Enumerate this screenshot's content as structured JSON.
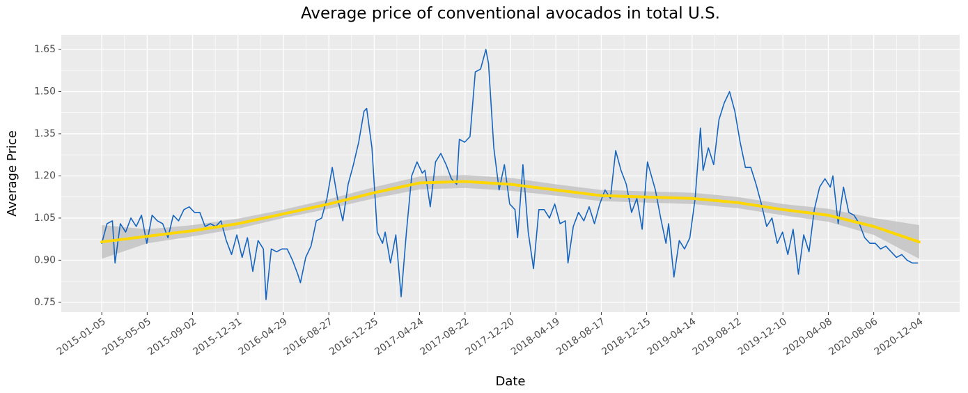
{
  "chart_data": {
    "type": "line",
    "title": "Average price of conventional avocados in total U.S.",
    "x_label": "Date",
    "y_label": "Average Price",
    "xlim": [
      "2014-09-20",
      "2021-03-21"
    ],
    "xticks": [
      "2015-01-05",
      "2015-05-05",
      "2015-09-02",
      "2015-12-31",
      "2016-04-29",
      "2016-08-27",
      "2016-12-25",
      "2017-04-24",
      "2017-08-22",
      "2017-12-20",
      "2018-04-19",
      "2018-08-17",
      "2018-12-15",
      "2019-04-14",
      "2019-08-12",
      "2019-12-10",
      "2020-04-08",
      "2020-08-06",
      "2020-12-04"
    ],
    "ylim": [
      0.715,
      1.702
    ],
    "yticks": [
      {
        "value": 0.75,
        "label": "0.75"
      },
      {
        "value": 0.9,
        "label": "0.90"
      },
      {
        "value": 1.05,
        "label": "1.05"
      },
      {
        "value": 1.2,
        "label": "1.20"
      },
      {
        "value": 1.35,
        "label": "1.35"
      },
      {
        "value": 1.5,
        "label": "1.50"
      },
      {
        "value": 1.65,
        "label": "1.65"
      }
    ],
    "grid": true,
    "series": [
      {
        "color": "#1565c0",
        "x": [
          "2015-01-05",
          "2015-01-19",
          "2015-02-02",
          "2015-02-09",
          "2015-02-23",
          "2015-03-09",
          "2015-03-23",
          "2015-04-06",
          "2015-04-20",
          "2015-05-04",
          "2015-05-18",
          "2015-06-01",
          "2015-06-15",
          "2015-06-29",
          "2015-07-13",
          "2015-07-27",
          "2015-08-10",
          "2015-08-24",
          "2015-09-07",
          "2015-09-21",
          "2015-10-05",
          "2015-10-19",
          "2015-11-02",
          "2015-11-16",
          "2015-11-30",
          "2015-12-14",
          "2015-12-28",
          "2016-01-11",
          "2016-01-25",
          "2016-02-08",
          "2016-02-22",
          "2016-03-07",
          "2016-03-14",
          "2016-03-28",
          "2016-04-11",
          "2016-04-25",
          "2016-05-09",
          "2016-05-23",
          "2016-06-06",
          "2016-06-13",
          "2016-06-27",
          "2016-07-11",
          "2016-07-25",
          "2016-08-08",
          "2016-08-22",
          "2016-09-05",
          "2016-09-19",
          "2016-10-03",
          "2016-10-17",
          "2016-10-31",
          "2016-11-14",
          "2016-11-28",
          "2016-12-05",
          "2016-12-19",
          "2017-01-02",
          "2017-01-16",
          "2017-01-23",
          "2017-02-06",
          "2017-02-20",
          "2017-03-06",
          "2017-03-20",
          "2017-04-03",
          "2017-04-17",
          "2017-05-01",
          "2017-05-08",
          "2017-05-22",
          "2017-06-05",
          "2017-06-19",
          "2017-07-03",
          "2017-07-17",
          "2017-07-31",
          "2017-08-07",
          "2017-08-21",
          "2017-09-04",
          "2017-09-18",
          "2017-10-02",
          "2017-10-16",
          "2017-10-23",
          "2017-11-06",
          "2017-11-20",
          "2017-12-04",
          "2017-12-18",
          "2018-01-01",
          "2018-01-08",
          "2018-01-22",
          "2018-02-05",
          "2018-02-19",
          "2018-03-05",
          "2018-03-19",
          "2018-04-02",
          "2018-04-16",
          "2018-04-30",
          "2018-05-14",
          "2018-05-21",
          "2018-06-04",
          "2018-06-18",
          "2018-07-02",
          "2018-07-16",
          "2018-07-30",
          "2018-08-13",
          "2018-08-27",
          "2018-09-10",
          "2018-09-24",
          "2018-10-08",
          "2018-10-22",
          "2018-11-05",
          "2018-11-19",
          "2018-12-03",
          "2018-12-17",
          "2019-01-07",
          "2019-01-21",
          "2019-02-04",
          "2019-02-11",
          "2019-02-25",
          "2019-03-11",
          "2019-03-25",
          "2019-04-08",
          "2019-04-22",
          "2019-05-06",
          "2019-05-13",
          "2019-05-27",
          "2019-06-10",
          "2019-06-24",
          "2019-07-08",
          "2019-07-22",
          "2019-08-05",
          "2019-08-19",
          "2019-09-02",
          "2019-09-16",
          "2019-09-30",
          "2019-10-14",
          "2019-10-28",
          "2019-11-11",
          "2019-11-25",
          "2019-12-09",
          "2019-12-23",
          "2020-01-06",
          "2020-01-20",
          "2020-02-03",
          "2020-02-17",
          "2020-03-02",
          "2020-03-16",
          "2020-03-30",
          "2020-04-13",
          "2020-04-20",
          "2020-05-04",
          "2020-05-18",
          "2020-06-01",
          "2020-06-15",
          "2020-06-29",
          "2020-07-13",
          "2020-07-27",
          "2020-08-10",
          "2020-08-24",
          "2020-09-07",
          "2020-09-21",
          "2020-10-05",
          "2020-10-19",
          "2020-11-02",
          "2020-11-16",
          "2020-11-30"
        ],
        "values": [
          0.96,
          1.03,
          1.04,
          0.89,
          1.03,
          1.0,
          1.05,
          1.02,
          1.06,
          0.96,
          1.06,
          1.04,
          1.03,
          0.98,
          1.06,
          1.04,
          1.08,
          1.09,
          1.07,
          1.07,
          1.02,
          1.03,
          1.02,
          1.04,
          0.97,
          0.92,
          0.99,
          0.91,
          0.98,
          0.86,
          0.97,
          0.94,
          0.76,
          0.94,
          0.93,
          0.94,
          0.94,
          0.9,
          0.85,
          0.82,
          0.91,
          0.95,
          1.04,
          1.05,
          1.12,
          1.23,
          1.12,
          1.04,
          1.17,
          1.24,
          1.32,
          1.43,
          1.44,
          1.3,
          1.0,
          0.96,
          1.0,
          0.89,
          0.99,
          0.77,
          1.0,
          1.2,
          1.25,
          1.21,
          1.22,
          1.09,
          1.25,
          1.28,
          1.24,
          1.19,
          1.17,
          1.33,
          1.32,
          1.34,
          1.57,
          1.58,
          1.65,
          1.6,
          1.3,
          1.15,
          1.24,
          1.1,
          1.08,
          0.98,
          1.24,
          1.0,
          0.87,
          1.08,
          1.08,
          1.05,
          1.1,
          1.03,
          1.04,
          0.89,
          1.02,
          1.07,
          1.04,
          1.09,
          1.03,
          1.1,
          1.15,
          1.12,
          1.29,
          1.22,
          1.17,
          1.07,
          1.12,
          1.01,
          1.25,
          1.15,
          1.05,
          0.96,
          1.03,
          0.84,
          0.97,
          0.94,
          0.98,
          1.12,
          1.37,
          1.22,
          1.3,
          1.24,
          1.4,
          1.46,
          1.5,
          1.43,
          1.32,
          1.23,
          1.23,
          1.17,
          1.1,
          1.02,
          1.05,
          0.96,
          1.0,
          0.92,
          1.01,
          0.85,
          0.99,
          0.93,
          1.08,
          1.16,
          1.19,
          1.16,
          1.2,
          1.03,
          1.16,
          1.07,
          1.06,
          1.03,
          0.98,
          0.96,
          0.96,
          0.94,
          0.95,
          0.93,
          0.91,
          0.92,
          0.9,
          0.89,
          0.89
        ]
      },
      {
        "color": "#ffd700",
        "band_color": "#bdbdbd",
        "x": [
          "2015-01-05",
          "2015-05-05",
          "2015-09-02",
          "2015-12-31",
          "2016-04-29",
          "2016-08-27",
          "2016-12-25",
          "2017-04-24",
          "2017-08-22",
          "2017-12-20",
          "2018-04-19",
          "2018-08-17",
          "2018-12-15",
          "2019-04-14",
          "2019-08-12",
          "2019-12-10",
          "2020-04-08",
          "2020-08-06",
          "2020-12-04"
        ],
        "values": [
          0.965,
          0.985,
          1.005,
          1.03,
          1.065,
          1.1,
          1.14,
          1.175,
          1.18,
          1.17,
          1.15,
          1.13,
          1.125,
          1.12,
          1.105,
          1.08,
          1.06,
          1.02,
          0.965
        ],
        "lower": [
          0.905,
          0.96,
          0.985,
          1.012,
          1.05,
          1.083,
          1.12,
          1.152,
          1.157,
          1.147,
          1.13,
          1.11,
          1.105,
          1.1,
          1.085,
          1.06,
          1.037,
          0.99,
          0.905
        ],
        "upper": [
          1.025,
          1.01,
          1.025,
          1.048,
          1.08,
          1.117,
          1.16,
          1.198,
          1.203,
          1.193,
          1.17,
          1.15,
          1.145,
          1.14,
          1.125,
          1.1,
          1.083,
          1.05,
          1.025
        ]
      }
    ]
  }
}
